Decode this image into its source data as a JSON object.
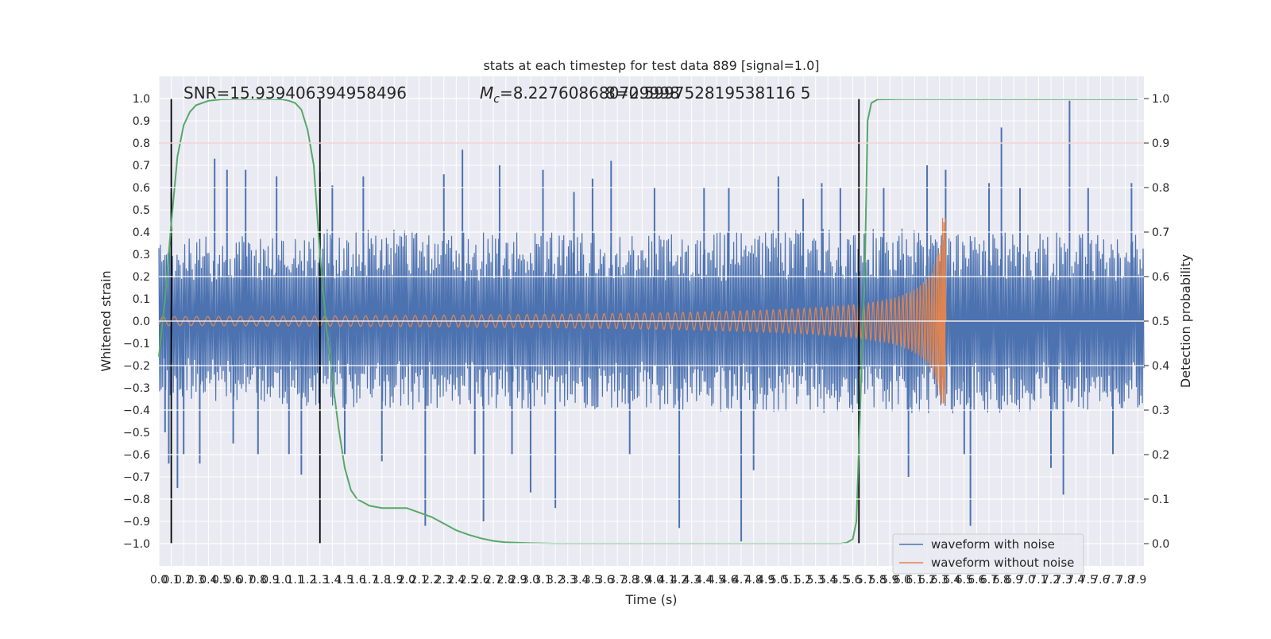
{
  "chart_data": {
    "type": "line",
    "title": "stats at each timestep for test data 889 [signal=1.0]",
    "xlabel": "Time (s)",
    "ylabel": "Whitened strain",
    "y2label": "Detection probability",
    "xlim": [
      0.0,
      7.95
    ],
    "ylim": [
      -1.1,
      1.1
    ],
    "y2lim": [
      -0.05,
      1.05
    ],
    "x_ticks": [
      "0.0",
      "0.1",
      "0.2",
      "0.3",
      "0.4",
      "0.5",
      "0.6",
      "0.7",
      "0.8",
      "0.9",
      "1.0",
      "1.1",
      "1.2",
      "1.3",
      "1.4",
      "1.5",
      "1.6",
      "1.7",
      "1.8",
      "1.9",
      "2.0",
      "2.1",
      "2.2",
      "2.3",
      "2.4",
      "2.5",
      "2.6",
      "2.7",
      "2.8",
      "2.9",
      "3.0",
      "3.1",
      "3.2",
      "3.3",
      "3.4",
      "3.5",
      "3.6",
      "3.7",
      "3.8",
      "3.9",
      "4.0",
      "4.1",
      "4.2",
      "4.3",
      "4.4",
      "4.5",
      "4.6",
      "4.7",
      "4.8",
      "4.9",
      "5.0",
      "5.1",
      "5.2",
      "5.3",
      "5.4",
      "5.5",
      "5.6",
      "5.7",
      "5.8",
      "5.9",
      "6.0",
      "6.1",
      "6.2",
      "6.3",
      "6.4",
      "6.5",
      "6.6",
      "6.7",
      "6.8",
      "6.9",
      "7.0",
      "7.1",
      "7.2",
      "7.3",
      "7.4",
      "7.5",
      "7.6",
      "7.7",
      "7.8",
      "7.9"
    ],
    "y_ticks": [
      "−1.0",
      "−0.9",
      "−0.8",
      "−0.7",
      "−0.6",
      "−0.5",
      "−0.4",
      "−0.3",
      "−0.2",
      "−0.1",
      "0.0",
      "0.1",
      "0.2",
      "0.3",
      "0.4",
      "0.5",
      "0.6",
      "0.7",
      "0.8",
      "0.9",
      "1.0"
    ],
    "y2_ticks": [
      "0.0",
      "0.1",
      "0.2",
      "0.3",
      "0.4",
      "0.5",
      "0.6",
      "0.7",
      "0.8",
      "0.9",
      "1.0"
    ],
    "grid": true,
    "legend_position": "lower-right",
    "annotations": {
      "snr": "SNR=15.939406394958496",
      "mc_prefix": "M",
      "mc_sub": "c",
      "mc_value": "=8.227608680729998",
      "mc_overlap": "8=0.599752819538116 5"
    },
    "colors": {
      "background": "#eaeaf2",
      "grid": "#ffffff",
      "noisy": "#4c72b0",
      "clean": "#dd8452",
      "probability": "#55a868",
      "threshold": "#c44e52",
      "vlines": "#000000"
    },
    "threshold": 0.9,
    "vlines": [
      0.1,
      1.3,
      5.65
    ],
    "series": [
      {
        "name": "waveform with noise",
        "envelope": {
          "upper": [
            [
              0.0,
              0.35
            ],
            [
              0.3,
              0.38
            ],
            [
              0.8,
              0.4
            ],
            [
              1.6,
              0.42
            ],
            [
              2.5,
              0.4
            ],
            [
              3.5,
              0.4
            ],
            [
              4.5,
              0.4
            ],
            [
              5.5,
              0.42
            ],
            [
              6.3,
              0.42
            ],
            [
              7.0,
              0.4
            ],
            [
              7.9,
              0.4
            ]
          ],
          "lower": [
            [
              0.0,
              -0.35
            ],
            [
              0.8,
              -0.38
            ],
            [
              2.0,
              -0.4
            ],
            [
              3.5,
              -0.4
            ],
            [
              5.5,
              -0.42
            ],
            [
              6.3,
              -0.42
            ],
            [
              7.9,
              -0.4
            ]
          ]
        },
        "spikes": [
          [
            0.05,
            -0.5
          ],
          [
            0.08,
            -0.64
          ],
          [
            0.1,
            0.58
          ],
          [
            0.15,
            -0.75
          ],
          [
            0.2,
            -0.6
          ],
          [
            0.33,
            -0.64
          ],
          [
            0.45,
            0.73
          ],
          [
            0.55,
            0.68
          ],
          [
            0.6,
            -0.55
          ],
          [
            0.7,
            0.68
          ],
          [
            0.8,
            -0.6
          ],
          [
            0.95,
            0.65
          ],
          [
            1.05,
            -0.6
          ],
          [
            1.15,
            -0.69
          ],
          [
            1.3,
            0.67
          ],
          [
            1.4,
            0.61
          ],
          [
            1.5,
            -0.6
          ],
          [
            1.65,
            0.65
          ],
          [
            1.8,
            -0.63
          ],
          [
            2.15,
            -0.92
          ],
          [
            2.3,
            0.66
          ],
          [
            2.45,
            0.77
          ],
          [
            2.55,
            -0.6
          ],
          [
            2.62,
            -0.9
          ],
          [
            2.75,
            0.7
          ],
          [
            2.85,
            -0.6
          ],
          [
            3.0,
            -0.77
          ],
          [
            3.1,
            0.68
          ],
          [
            3.2,
            -0.84
          ],
          [
            3.35,
            0.58
          ],
          [
            3.5,
            0.64
          ],
          [
            3.65,
            0.72
          ],
          [
            3.8,
            -0.6
          ],
          [
            4.0,
            0.6
          ],
          [
            4.2,
            -0.93
          ],
          [
            4.4,
            0.6
          ],
          [
            4.6,
            0.6
          ],
          [
            4.7,
            -0.99
          ],
          [
            4.8,
            -0.67
          ],
          [
            5.0,
            0.65
          ],
          [
            5.2,
            0.55
          ],
          [
            5.35,
            0.62
          ],
          [
            5.5,
            0.6
          ],
          [
            5.65,
            -0.6
          ],
          [
            5.85,
            0.6
          ],
          [
            6.05,
            -0.7
          ],
          [
            6.2,
            0.7
          ],
          [
            6.35,
            0.68
          ],
          [
            6.5,
            -0.6
          ],
          [
            6.55,
            -0.92
          ],
          [
            6.7,
            0.62
          ],
          [
            6.8,
            0.87
          ],
          [
            6.95,
            0.6
          ],
          [
            7.2,
            -0.66
          ],
          [
            7.3,
            -0.78
          ],
          [
            7.35,
            0.99
          ],
          [
            7.5,
            0.6
          ],
          [
            7.7,
            -0.6
          ],
          [
            7.85,
            0.62
          ]
        ]
      },
      {
        "name": "waveform without noise",
        "chirp": {
          "start_time": 0.0,
          "merger_time": 6.35,
          "end_time": 6.4,
          "base_amplitude": 0.02,
          "peak_upper": 0.52,
          "peak_lower": -0.37,
          "base_frequency_hz": 11,
          "post_merger": 0.0
        }
      },
      {
        "name": "detection probability",
        "axis": "y2",
        "x": [
          0.0,
          0.05,
          0.1,
          0.15,
          0.2,
          0.25,
          0.3,
          0.4,
          0.5,
          0.6,
          0.7,
          0.8,
          0.9,
          1.0,
          1.05,
          1.1,
          1.15,
          1.2,
          1.25,
          1.3,
          1.35,
          1.4,
          1.45,
          1.5,
          1.55,
          1.6,
          1.7,
          1.8,
          1.9,
          2.0,
          2.1,
          2.2,
          2.3,
          2.4,
          2.5,
          2.6,
          2.7,
          2.8,
          2.9,
          3.0,
          3.2,
          3.5,
          4.0,
          4.5,
          5.0,
          5.3,
          5.5,
          5.55,
          5.6,
          5.63,
          5.66,
          5.7,
          5.72,
          5.75,
          5.8,
          6.0,
          7.0,
          7.9
        ],
        "values": [
          0.42,
          0.55,
          0.72,
          0.87,
          0.94,
          0.97,
          0.985,
          0.995,
          0.998,
          0.999,
          0.999,
          0.999,
          0.999,
          0.998,
          0.995,
          0.99,
          0.975,
          0.93,
          0.85,
          0.65,
          0.49,
          0.37,
          0.26,
          0.17,
          0.12,
          0.1,
          0.085,
          0.08,
          0.08,
          0.08,
          0.07,
          0.06,
          0.045,
          0.03,
          0.02,
          0.012,
          0.006,
          0.003,
          0.002,
          0.001,
          0.0,
          0.0,
          0.0,
          0.0,
          0.0,
          0.0,
          0.0,
          0.002,
          0.01,
          0.05,
          0.3,
          0.65,
          0.95,
          0.99,
          0.998,
          0.999,
          0.999,
          0.999
        ]
      }
    ]
  }
}
